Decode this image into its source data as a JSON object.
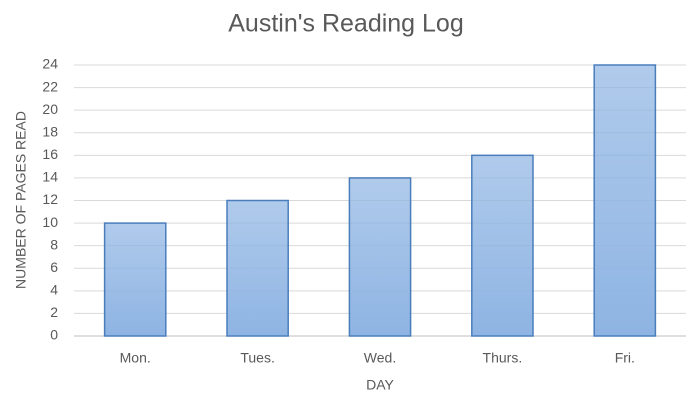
{
  "chart_data": {
    "type": "bar",
    "title": "Austin's Reading Log",
    "x_label": "DAY",
    "y_label": "NUMBER OF PAGES READ",
    "categories": [
      "Mon.",
      "Tues.",
      "Wed.",
      "Thurs.",
      "Fri."
    ],
    "values": [
      10,
      12,
      14,
      16,
      24
    ],
    "color": "#8eb4e3",
    "ylim": [
      0,
      24
    ],
    "yticks": [
      0,
      2,
      4,
      6,
      8,
      10,
      12,
      14,
      16,
      18,
      20,
      22,
      24
    ],
    "grid": true
  }
}
